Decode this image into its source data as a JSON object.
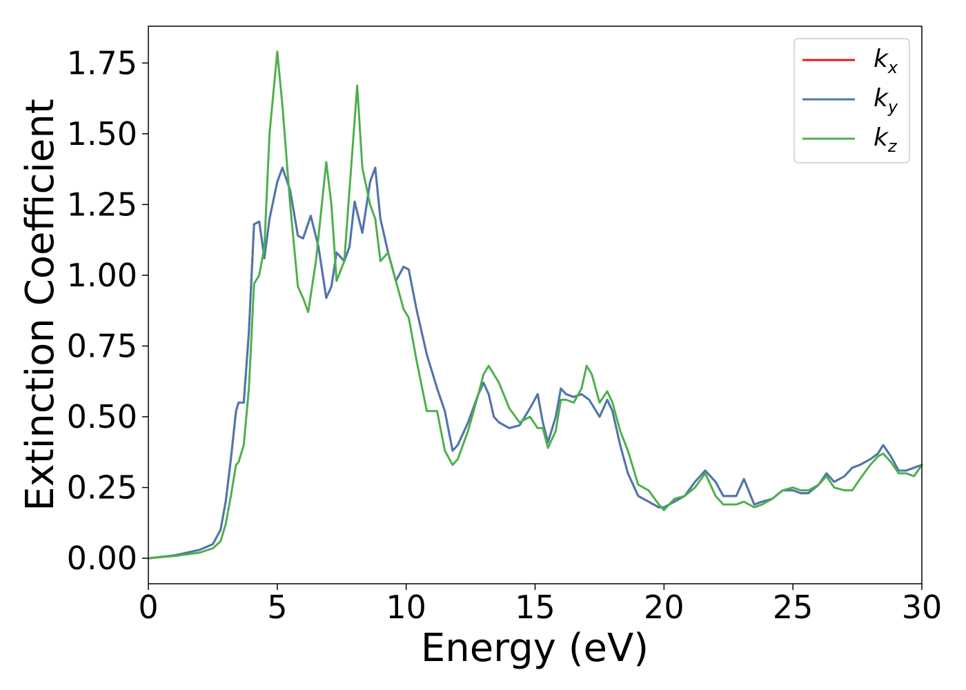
{
  "chart_data": {
    "type": "line",
    "xlabel": "Energy (eV)",
    "ylabel": "Extinction Coefficient",
    "xlim": [
      0,
      30
    ],
    "ylim": [
      -0.09,
      1.88
    ],
    "x_ticks": [
      0,
      5,
      10,
      15,
      20,
      25,
      30
    ],
    "x_tick_labels": [
      "0",
      "5",
      "10",
      "15",
      "20",
      "25",
      "30"
    ],
    "y_ticks": [
      0.0,
      0.25,
      0.5,
      0.75,
      1.0,
      1.25,
      1.5,
      1.75
    ],
    "y_tick_labels": [
      "0.00",
      "0.25",
      "0.50",
      "0.75",
      "1.00",
      "1.25",
      "1.50",
      "1.75"
    ],
    "grid": false,
    "legend_position": "top-right",
    "series": [
      {
        "name": "k",
        "subscript": "x",
        "color": "#e41a1c",
        "x": [
          0,
          1,
          2,
          2.5,
          2.8,
          3.0,
          3.2,
          3.4,
          3.5,
          3.7,
          3.9,
          4.1,
          4.3,
          4.5,
          4.7,
          5.0,
          5.2,
          5.5,
          5.8,
          6.0,
          6.3,
          6.6,
          6.9,
          7.1,
          7.3,
          7.6,
          7.8,
          8.0,
          8.3,
          8.6,
          8.8,
          9.0,
          9.3,
          9.6,
          9.9,
          10.1,
          10.4,
          10.8,
          11.2,
          11.5,
          11.8,
          12.0,
          12.4,
          12.8,
          13.0,
          13.2,
          13.4,
          13.6,
          14.0,
          14.4,
          14.8,
          15.1,
          15.3,
          15.5,
          15.8,
          16.0,
          16.2,
          16.5,
          16.8,
          17.1,
          17.5,
          17.8,
          18.0,
          18.3,
          18.6,
          19.0,
          19.4,
          19.8,
          20.0,
          20.4,
          20.8,
          21.2,
          21.6,
          22.0,
          22.3,
          22.8,
          23.1,
          23.5,
          23.8,
          24.2,
          24.6,
          25.0,
          25.3,
          25.6,
          26.0,
          26.3,
          26.6,
          27.0,
          27.3,
          27.6,
          28.0,
          28.3,
          28.5,
          28.8,
          29.1,
          29.4,
          29.7,
          30.0
        ],
        "values": [
          0.0,
          0.01,
          0.03,
          0.05,
          0.1,
          0.2,
          0.35,
          0.52,
          0.55,
          0.55,
          0.8,
          1.18,
          1.19,
          1.06,
          1.2,
          1.33,
          1.38,
          1.3,
          1.14,
          1.13,
          1.21,
          1.1,
          0.92,
          0.96,
          1.08,
          1.05,
          1.1,
          1.26,
          1.15,
          1.33,
          1.38,
          1.2,
          1.08,
          0.98,
          1.03,
          1.02,
          0.88,
          0.72,
          0.6,
          0.52,
          0.38,
          0.4,
          0.48,
          0.58,
          0.62,
          0.58,
          0.5,
          0.48,
          0.46,
          0.47,
          0.53,
          0.58,
          0.48,
          0.41,
          0.5,
          0.6,
          0.58,
          0.57,
          0.58,
          0.56,
          0.5,
          0.56,
          0.52,
          0.4,
          0.3,
          0.22,
          0.2,
          0.18,
          0.18,
          0.2,
          0.22,
          0.27,
          0.31,
          0.27,
          0.22,
          0.22,
          0.28,
          0.19,
          0.2,
          0.21,
          0.24,
          0.24,
          0.23,
          0.23,
          0.26,
          0.3,
          0.27,
          0.29,
          0.32,
          0.33,
          0.35,
          0.37,
          0.4,
          0.36,
          0.31,
          0.31,
          0.32,
          0.33
        ]
      },
      {
        "name": "k",
        "subscript": "y",
        "color": "#4a78b0",
        "x": [
          0,
          1,
          2,
          2.5,
          2.8,
          3.0,
          3.2,
          3.4,
          3.5,
          3.7,
          3.9,
          4.1,
          4.3,
          4.5,
          4.7,
          5.0,
          5.2,
          5.5,
          5.8,
          6.0,
          6.3,
          6.6,
          6.9,
          7.1,
          7.3,
          7.6,
          7.8,
          8.0,
          8.3,
          8.6,
          8.8,
          9.0,
          9.3,
          9.6,
          9.9,
          10.1,
          10.4,
          10.8,
          11.2,
          11.5,
          11.8,
          12.0,
          12.4,
          12.8,
          13.0,
          13.2,
          13.4,
          13.6,
          14.0,
          14.4,
          14.8,
          15.1,
          15.3,
          15.5,
          15.8,
          16.0,
          16.2,
          16.5,
          16.8,
          17.1,
          17.5,
          17.8,
          18.0,
          18.3,
          18.6,
          19.0,
          19.4,
          19.8,
          20.0,
          20.4,
          20.8,
          21.2,
          21.6,
          22.0,
          22.3,
          22.8,
          23.1,
          23.5,
          23.8,
          24.2,
          24.6,
          25.0,
          25.3,
          25.6,
          26.0,
          26.3,
          26.6,
          27.0,
          27.3,
          27.6,
          28.0,
          28.3,
          28.5,
          28.8,
          29.1,
          29.4,
          29.7,
          30.0
        ],
        "values": [
          0.0,
          0.01,
          0.03,
          0.05,
          0.1,
          0.2,
          0.35,
          0.52,
          0.55,
          0.55,
          0.8,
          1.18,
          1.19,
          1.06,
          1.2,
          1.33,
          1.38,
          1.3,
          1.14,
          1.13,
          1.21,
          1.1,
          0.92,
          0.96,
          1.08,
          1.05,
          1.1,
          1.26,
          1.15,
          1.33,
          1.38,
          1.2,
          1.08,
          0.98,
          1.03,
          1.02,
          0.88,
          0.72,
          0.6,
          0.52,
          0.38,
          0.4,
          0.48,
          0.58,
          0.62,
          0.58,
          0.5,
          0.48,
          0.46,
          0.47,
          0.53,
          0.58,
          0.48,
          0.41,
          0.5,
          0.6,
          0.58,
          0.57,
          0.58,
          0.56,
          0.5,
          0.56,
          0.52,
          0.4,
          0.3,
          0.22,
          0.2,
          0.18,
          0.18,
          0.2,
          0.22,
          0.27,
          0.31,
          0.27,
          0.22,
          0.22,
          0.28,
          0.19,
          0.2,
          0.21,
          0.24,
          0.24,
          0.23,
          0.23,
          0.26,
          0.3,
          0.27,
          0.29,
          0.32,
          0.33,
          0.35,
          0.37,
          0.4,
          0.36,
          0.31,
          0.31,
          0.32,
          0.33
        ]
      },
      {
        "name": "k",
        "subscript": "z",
        "color": "#4daf4a",
        "x": [
          0,
          1,
          2,
          2.5,
          2.8,
          3.0,
          3.2,
          3.4,
          3.5,
          3.7,
          3.9,
          4.1,
          4.3,
          4.5,
          4.7,
          5.0,
          5.2,
          5.5,
          5.8,
          6.0,
          6.2,
          6.5,
          6.9,
          7.1,
          7.3,
          7.6,
          7.8,
          8.1,
          8.3,
          8.6,
          8.8,
          9.0,
          9.3,
          9.6,
          9.9,
          10.1,
          10.4,
          10.8,
          11.2,
          11.5,
          11.8,
          12.0,
          12.4,
          12.8,
          13.0,
          13.2,
          13.4,
          13.6,
          14.0,
          14.4,
          14.8,
          15.1,
          15.3,
          15.5,
          15.8,
          16.0,
          16.2,
          16.5,
          16.8,
          17.0,
          17.2,
          17.5,
          17.8,
          18.0,
          18.3,
          18.6,
          19.0,
          19.4,
          19.8,
          20.0,
          20.4,
          20.8,
          21.2,
          21.6,
          22.0,
          22.3,
          22.8,
          23.1,
          23.5,
          23.8,
          24.2,
          24.6,
          25.0,
          25.3,
          25.6,
          26.0,
          26.3,
          26.6,
          27.0,
          27.3,
          27.6,
          28.0,
          28.3,
          28.5,
          28.8,
          29.1,
          29.4,
          29.7,
          30.0
        ],
        "values": [
          0.0,
          0.008,
          0.02,
          0.035,
          0.06,
          0.12,
          0.22,
          0.33,
          0.34,
          0.4,
          0.6,
          0.97,
          1.0,
          1.1,
          1.5,
          1.79,
          1.6,
          1.25,
          0.96,
          0.92,
          0.87,
          1.05,
          1.4,
          1.25,
          0.98,
          1.05,
          1.3,
          1.67,
          1.38,
          1.25,
          1.2,
          1.05,
          1.08,
          0.98,
          0.88,
          0.85,
          0.7,
          0.52,
          0.52,
          0.38,
          0.33,
          0.35,
          0.45,
          0.58,
          0.65,
          0.68,
          0.65,
          0.62,
          0.53,
          0.48,
          0.5,
          0.46,
          0.46,
          0.39,
          0.45,
          0.56,
          0.56,
          0.55,
          0.6,
          0.68,
          0.65,
          0.55,
          0.59,
          0.55,
          0.45,
          0.38,
          0.26,
          0.24,
          0.19,
          0.17,
          0.21,
          0.22,
          0.25,
          0.3,
          0.22,
          0.19,
          0.19,
          0.2,
          0.18,
          0.19,
          0.21,
          0.24,
          0.25,
          0.24,
          0.24,
          0.26,
          0.29,
          0.25,
          0.24,
          0.24,
          0.28,
          0.33,
          0.36,
          0.37,
          0.34,
          0.3,
          0.3,
          0.29,
          0.33
        ]
      }
    ]
  }
}
